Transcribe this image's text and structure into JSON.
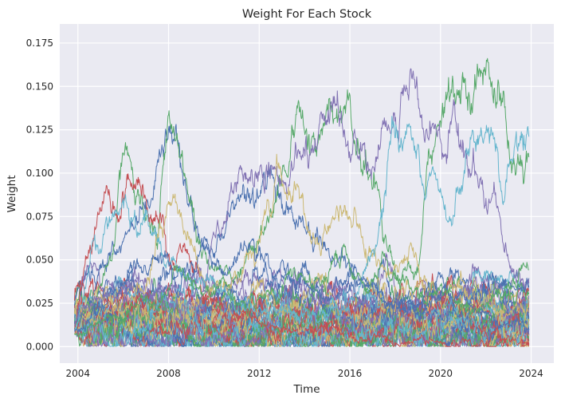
{
  "chart_data": {
    "type": "line",
    "title": "Weight For Each Stock",
    "xlabel": "Time",
    "ylabel": "Weight",
    "xlim": [
      2003.2,
      2025.0
    ],
    "ylim": [
      -0.0095,
      0.186
    ],
    "xticks": [
      2004,
      2008,
      2012,
      2016,
      2020,
      2024
    ],
    "xtick_labels": [
      "2004",
      "2008",
      "2012",
      "2016",
      "2020",
      "2024"
    ],
    "yticks": [
      0.0,
      0.025,
      0.05,
      0.075,
      0.1,
      0.125,
      0.15,
      0.175
    ],
    "ytick_labels": [
      "0.000",
      "0.025",
      "0.050",
      "0.075",
      "0.100",
      "0.125",
      "0.150",
      "0.175"
    ],
    "grid": true,
    "legend": "none",
    "style": {
      "background": "#eaeaf2",
      "grid_color": "#ffffff",
      "palette": [
        "#4c72b0",
        "#dd8452",
        "#55a868",
        "#c44e52",
        "#8172b3",
        "#937860",
        "#da8bc3",
        "#8c8c8c",
        "#ccb974",
        "#64b5cd"
      ],
      "shown_colors": [
        "#4c72b0",
        "#55a868",
        "#c44e52",
        "#8172b3",
        "#ccb974",
        "#64b5cd"
      ]
    },
    "x_range": [
      2003.85,
      2023.9
    ],
    "series": [
      {
        "values": [
          [
            2003.85,
            0.012
          ],
          [
            2004.5,
            0.03
          ],
          [
            2005.5,
            0.055
          ],
          [
            2006.5,
            0.065
          ],
          [
            2007.3,
            0.09
          ],
          [
            2008.0,
            0.125
          ],
          [
            2008.7,
            0.095
          ],
          [
            2009.5,
            0.05
          ],
          [
            2010.3,
            0.055
          ],
          [
            2011.2,
            0.09
          ],
          [
            2012.0,
            0.088
          ],
          [
            2013.0,
            0.09
          ],
          [
            2014.0,
            0.07
          ],
          [
            2015.0,
            0.055
          ],
          [
            2016.0,
            0.045
          ],
          [
            2017.0,
            0.035
          ],
          [
            2018.0,
            0.025
          ],
          [
            2019.0,
            0.02
          ],
          [
            2020.0,
            0.018
          ],
          [
            2021.0,
            0.015
          ],
          [
            2022.0,
            0.02
          ],
          [
            2023.0,
            0.012
          ],
          [
            2023.9,
            0.01
          ]
        ]
      },
      {
        "values": [
          [
            2003.85,
            0.01
          ],
          [
            2004.5,
            0.02
          ],
          [
            2005.0,
            0.035
          ],
          [
            2005.5,
            0.05
          ],
          [
            2006.0,
            0.115
          ],
          [
            2006.5,
            0.09
          ],
          [
            2007.5,
            0.06
          ],
          [
            2008.0,
            0.135
          ],
          [
            2008.6,
            0.11
          ],
          [
            2009.2,
            0.065
          ],
          [
            2010.0,
            0.045
          ],
          [
            2011.0,
            0.035
          ],
          [
            2012.0,
            0.065
          ],
          [
            2013.0,
            0.09
          ],
          [
            2013.8,
            0.13
          ],
          [
            2014.5,
            0.115
          ],
          [
            2015.2,
            0.135
          ],
          [
            2015.8,
            0.14
          ],
          [
            2016.5,
            0.105
          ],
          [
            2017.2,
            0.1
          ],
          [
            2017.5,
            0.065
          ],
          [
            2018.2,
            0.04
          ],
          [
            2019.0,
            0.04
          ],
          [
            2019.5,
            0.1
          ],
          [
            2020.0,
            0.14
          ],
          [
            2020.6,
            0.17
          ],
          [
            2021.2,
            0.15
          ],
          [
            2022.0,
            0.155
          ],
          [
            2022.8,
            0.125
          ],
          [
            2023.3,
            0.1
          ],
          [
            2023.9,
            0.105
          ]
        ]
      },
      {
        "values": [
          [
            2003.85,
            0.008
          ],
          [
            2004.3,
            0.045
          ],
          [
            2004.7,
            0.075
          ],
          [
            2005.2,
            0.085
          ],
          [
            2005.8,
            0.092
          ],
          [
            2006.3,
            0.095
          ],
          [
            2006.8,
            0.09
          ],
          [
            2007.2,
            0.08
          ],
          [
            2007.8,
            0.068
          ],
          [
            2008.3,
            0.05
          ],
          [
            2008.8,
            0.055
          ],
          [
            2009.5,
            0.03
          ],
          [
            2010.5,
            0.02
          ],
          [
            2011.5,
            0.015
          ],
          [
            2012.5,
            0.012
          ],
          [
            2013.5,
            0.01
          ],
          [
            2014.5,
            0.01
          ],
          [
            2015.5,
            0.008
          ],
          [
            2016.5,
            0.006
          ],
          [
            2017.5,
            0.005
          ],
          [
            2018.5,
            0.004
          ],
          [
            2019.5,
            0.003
          ],
          [
            2020.5,
            0.003
          ],
          [
            2021.5,
            0.002
          ],
          [
            2022.5,
            0.002
          ],
          [
            2023.9,
            0.002
          ]
        ]
      },
      {
        "values": [
          [
            2003.85,
            0.012
          ],
          [
            2004.5,
            0.025
          ],
          [
            2005.5,
            0.03
          ],
          [
            2006.5,
            0.035
          ],
          [
            2007.5,
            0.03
          ],
          [
            2008.5,
            0.02
          ],
          [
            2009.5,
            0.03
          ],
          [
            2010.2,
            0.07
          ],
          [
            2010.8,
            0.09
          ],
          [
            2011.3,
            0.1
          ],
          [
            2011.8,
            0.095
          ],
          [
            2012.3,
            0.1
          ],
          [
            2013.0,
            0.09
          ],
          [
            2013.6,
            0.11
          ],
          [
            2014.3,
            0.115
          ],
          [
            2015.0,
            0.12
          ],
          [
            2015.6,
            0.13
          ],
          [
            2016.3,
            0.115
          ],
          [
            2017.0,
            0.1
          ],
          [
            2017.7,
            0.12
          ],
          [
            2018.3,
            0.14
          ],
          [
            2018.8,
            0.135
          ],
          [
            2019.4,
            0.13
          ],
          [
            2020.0,
            0.125
          ],
          [
            2020.8,
            0.12
          ],
          [
            2021.5,
            0.1
          ],
          [
            2022.0,
            0.09
          ],
          [
            2022.5,
            0.08
          ],
          [
            2023.0,
            0.05
          ],
          [
            2023.5,
            0.04
          ],
          [
            2023.9,
            0.038
          ]
        ]
      },
      {
        "values": [
          [
            2003.85,
            0.009
          ],
          [
            2004.5,
            0.015
          ],
          [
            2005.5,
            0.02
          ],
          [
            2006.5,
            0.025
          ],
          [
            2007.0,
            0.04
          ],
          [
            2007.5,
            0.06
          ],
          [
            2008.0,
            0.085
          ],
          [
            2008.6,
            0.075
          ],
          [
            2009.3,
            0.045
          ],
          [
            2010.0,
            0.03
          ],
          [
            2011.0,
            0.04
          ],
          [
            2011.8,
            0.06
          ],
          [
            2012.5,
            0.085
          ],
          [
            2013.2,
            0.1
          ],
          [
            2014.0,
            0.085
          ],
          [
            2014.6,
            0.065
          ],
          [
            2015.3,
            0.07
          ],
          [
            2016.0,
            0.075
          ],
          [
            2016.8,
            0.06
          ],
          [
            2017.5,
            0.045
          ],
          [
            2018.2,
            0.05
          ],
          [
            2018.8,
            0.055
          ],
          [
            2019.5,
            0.035
          ],
          [
            2020.2,
            0.028
          ],
          [
            2021.0,
            0.03
          ],
          [
            2022.0,
            0.025
          ],
          [
            2023.0,
            0.02
          ],
          [
            2023.9,
            0.022
          ]
        ]
      },
      {
        "values": [
          [
            2003.85,
            0.011
          ],
          [
            2004.3,
            0.03
          ],
          [
            2004.8,
            0.06
          ],
          [
            2005.3,
            0.07
          ],
          [
            2005.8,
            0.085
          ],
          [
            2006.3,
            0.08
          ],
          [
            2006.8,
            0.075
          ],
          [
            2007.3,
            0.065
          ],
          [
            2007.8,
            0.05
          ],
          [
            2008.5,
            0.04
          ],
          [
            2009.5,
            0.035
          ],
          [
            2010.5,
            0.03
          ],
          [
            2011.5,
            0.025
          ],
          [
            2012.5,
            0.02
          ],
          [
            2013.5,
            0.02
          ],
          [
            2014.5,
            0.015
          ],
          [
            2015.5,
            0.02
          ],
          [
            2016.5,
            0.03
          ],
          [
            2017.2,
            0.07
          ],
          [
            2017.8,
            0.12
          ],
          [
            2018.3,
            0.13
          ],
          [
            2018.8,
            0.125
          ],
          [
            2019.3,
            0.1
          ],
          [
            2019.8,
            0.095
          ],
          [
            2020.3,
            0.07
          ],
          [
            2020.8,
            0.09
          ],
          [
            2021.3,
            0.11
          ],
          [
            2021.8,
            0.13
          ],
          [
            2022.3,
            0.115
          ],
          [
            2022.8,
            0.09
          ],
          [
            2023.3,
            0.115
          ],
          [
            2023.6,
            0.135
          ],
          [
            2023.9,
            0.13
          ]
        ]
      },
      {
        "values": [
          [
            2003.85,
            0.008
          ],
          [
            2004.5,
            0.018
          ],
          [
            2005.5,
            0.03
          ],
          [
            2006.5,
            0.04
          ],
          [
            2007.5,
            0.05
          ],
          [
            2008.5,
            0.035
          ],
          [
            2009.5,
            0.06
          ],
          [
            2010.5,
            0.045
          ],
          [
            2011.5,
            0.06
          ],
          [
            2012.5,
            0.05
          ],
          [
            2013.5,
            0.04
          ],
          [
            2014.5,
            0.03
          ],
          [
            2015.5,
            0.035
          ],
          [
            2016.5,
            0.04
          ],
          [
            2017.5,
            0.03
          ],
          [
            2018.5,
            0.02
          ],
          [
            2019.5,
            0.03
          ],
          [
            2020.5,
            0.025
          ],
          [
            2021.5,
            0.03
          ],
          [
            2022.5,
            0.035
          ],
          [
            2023.9,
            0.03
          ]
        ]
      },
      {
        "values": [
          [
            2003.85,
            0.006
          ],
          [
            2004.5,
            0.012
          ],
          [
            2005.5,
            0.015
          ],
          [
            2006.5,
            0.02
          ],
          [
            2007.5,
            0.025
          ],
          [
            2008.5,
            0.04
          ],
          [
            2009.5,
            0.03
          ],
          [
            2010.5,
            0.035
          ],
          [
            2011.5,
            0.02
          ],
          [
            2012.5,
            0.03
          ],
          [
            2013.5,
            0.04
          ],
          [
            2014.5,
            0.035
          ],
          [
            2015.5,
            0.05
          ],
          [
            2016.5,
            0.04
          ],
          [
            2017.5,
            0.045
          ],
          [
            2018.5,
            0.035
          ],
          [
            2019.5,
            0.025
          ],
          [
            2020.5,
            0.03
          ],
          [
            2021.5,
            0.02
          ],
          [
            2022.5,
            0.03
          ],
          [
            2023.9,
            0.045
          ]
        ]
      }
    ]
  }
}
